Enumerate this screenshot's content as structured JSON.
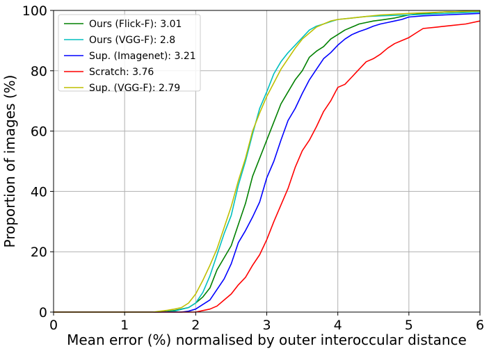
{
  "chart_data": {
    "type": "line",
    "xlabel": "Mean error (%) normalised by outer interoccular distance",
    "ylabel": "Proportion of images (%)",
    "xlim": [
      0,
      6
    ],
    "ylim": [
      0,
      100
    ],
    "xticks": [
      "0",
      "1",
      "2",
      "3",
      "4",
      "5",
      "6"
    ],
    "yticks": [
      "0",
      "20",
      "40",
      "60",
      "80",
      "100"
    ],
    "grid": true,
    "legend_position": "top-left",
    "series": [
      {
        "name": "Ours (Flick-F): 3.01",
        "color": "#008000",
        "x": [
          0,
          1.5,
          1.7,
          1.8,
          1.9,
          2.0,
          2.1,
          2.2,
          2.3,
          2.4,
          2.5,
          2.6,
          2.7,
          2.8,
          2.9,
          3.0,
          3.1,
          3.2,
          3.3,
          3.4,
          3.5,
          3.6,
          3.7,
          3.8,
          3.9,
          4.0,
          4.1,
          4.2,
          4.3,
          4.4,
          4.5,
          4.6,
          4.8,
          5.0,
          5.2,
          5.5,
          6.0
        ],
        "y": [
          0,
          0,
          0.5,
          1,
          1.5,
          3,
          5,
          8,
          14,
          18,
          22,
          29,
          36,
          45,
          51,
          57,
          63,
          69,
          73,
          77,
          80,
          84.5,
          86.5,
          88,
          90.5,
          92,
          93.5,
          94.5,
          95.5,
          96,
          96.5,
          96.8,
          97.5,
          98.5,
          99,
          99.5,
          99.8
        ]
      },
      {
        "name": "Ours (VGG-F): 2.8",
        "color": "#00bfbf",
        "x": [
          0,
          1.5,
          1.7,
          1.9,
          2.0,
          2.1,
          2.2,
          2.3,
          2.4,
          2.5,
          2.6,
          2.7,
          2.8,
          2.9,
          3.0,
          3.1,
          3.2,
          3.3,
          3.4,
          3.5,
          3.6,
          3.7,
          3.8,
          3.9,
          4.0,
          4.2,
          4.4,
          4.6,
          5.0,
          5.5,
          6.0
        ],
        "y": [
          0,
          0,
          0.3,
          1.5,
          3,
          6.5,
          12,
          19,
          26,
          32,
          42,
          50,
          59,
          67.5,
          73,
          79,
          83,
          86,
          88.5,
          91,
          93.5,
          94.8,
          95.5,
          96.3,
          97,
          97.5,
          98,
          98.2,
          98.5,
          99,
          99.5
        ]
      },
      {
        "name": "Sup. (Imagenet): 3.21",
        "color": "#0000ff",
        "x": [
          0,
          1.8,
          1.9,
          2.0,
          2.1,
          2.2,
          2.3,
          2.4,
          2.5,
          2.6,
          2.7,
          2.8,
          2.9,
          3.0,
          3.1,
          3.2,
          3.3,
          3.4,
          3.5,
          3.6,
          3.7,
          3.8,
          3.9,
          4.0,
          4.1,
          4.2,
          4.3,
          4.4,
          4.5,
          4.6,
          4.7,
          4.8,
          4.9,
          5.0,
          5.2,
          5.5,
          6.0
        ],
        "y": [
          0,
          0,
          0.3,
          1,
          2.5,
          4,
          7.5,
          11,
          16,
          23,
          27,
          31.5,
          36.5,
          44.5,
          50,
          57,
          63.5,
          67.5,
          72.5,
          77,
          80.5,
          84,
          86,
          88.5,
          90.5,
          92,
          93,
          93.8,
          94.8,
          95.5,
          96,
          96.5,
          97,
          97.8,
          98.2,
          98.5,
          99
        ]
      },
      {
        "name": "Scratch: 3.76",
        "color": "#ff0000",
        "x": [
          0,
          2.0,
          2.1,
          2.2,
          2.3,
          2.4,
          2.5,
          2.6,
          2.7,
          2.8,
          2.9,
          3.0,
          3.1,
          3.2,
          3.3,
          3.4,
          3.5,
          3.6,
          3.7,
          3.8,
          3.9,
          4.0,
          4.1,
          4.2,
          4.3,
          4.4,
          4.5,
          4.6,
          4.7,
          4.8,
          4.9,
          5.0,
          5.1,
          5.2,
          5.4,
          5.6,
          5.8,
          6.0
        ],
        "y": [
          0,
          0,
          0.5,
          1,
          2,
          4,
          6,
          9,
          11.5,
          15.5,
          19,
          24,
          30,
          35.5,
          41,
          48,
          53.5,
          57,
          61.5,
          66.5,
          70,
          74.5,
          75.5,
          78,
          80.5,
          83,
          84,
          85.5,
          87.5,
          89,
          90,
          91,
          92.5,
          94,
          94.5,
          95,
          95.5,
          96.5
        ]
      },
      {
        "name": "Sup. (VGG-F): 2.79",
        "color": "#bfbf00",
        "x": [
          0,
          1.4,
          1.5,
          1.6,
          1.7,
          1.8,
          1.9,
          2.0,
          2.1,
          2.2,
          2.3,
          2.4,
          2.5,
          2.6,
          2.7,
          2.8,
          2.9,
          3.0,
          3.1,
          3.2,
          3.3,
          3.4,
          3.5,
          3.6,
          3.7,
          3.8,
          3.9,
          4.0,
          4.2,
          4.4,
          4.6,
          5.0,
          5.5,
          6.0
        ],
        "y": [
          0,
          0,
          0.3,
          0.6,
          1,
          1.5,
          3,
          6,
          10.5,
          15.5,
          21,
          28,
          35,
          43.5,
          51,
          60,
          66,
          71.5,
          76,
          80.5,
          84,
          87.5,
          90.5,
          92.5,
          94.5,
          95.5,
          96.5,
          97,
          97.5,
          98,
          98.5,
          99,
          99.5,
          99.8
        ]
      }
    ]
  }
}
